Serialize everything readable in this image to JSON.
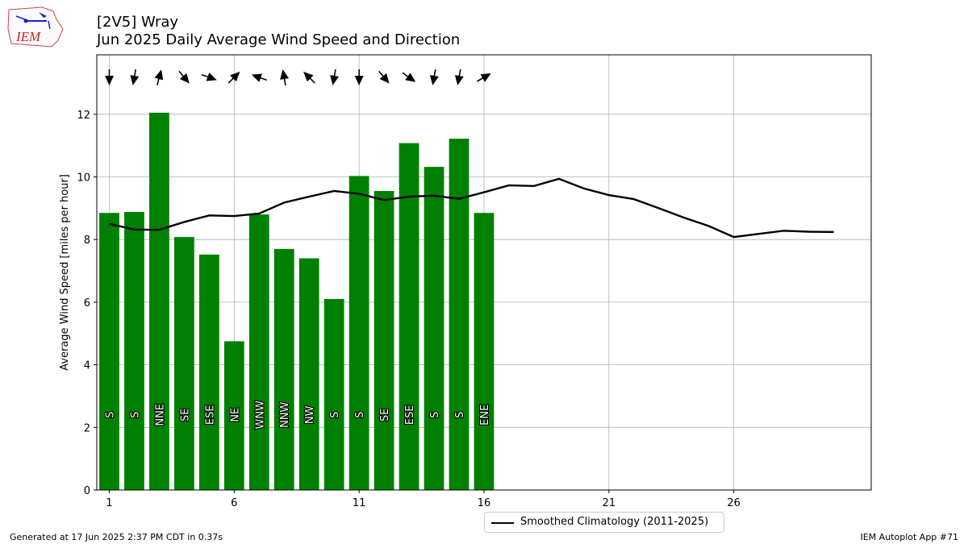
{
  "header": {
    "station": "[2V5] Wray",
    "subtitle": "Jun 2025 Daily Average Wind Speed and Direction"
  },
  "logo": {
    "text": "IEM"
  },
  "chart_data": {
    "type": "bar",
    "ylabel": "Average Wind Speed [miles per hour]",
    "xlabel": "",
    "xlim": [
      0.5,
      31.5
    ],
    "ylim": [
      0,
      13.9
    ],
    "xticks": [
      1,
      6,
      11,
      16,
      21,
      26
    ],
    "yticks": [
      0,
      2,
      4,
      6,
      8,
      10,
      12
    ],
    "grid": true,
    "bar_color": "#008000",
    "days": [
      1,
      2,
      3,
      4,
      5,
      6,
      7,
      8,
      9,
      10,
      11,
      12,
      13,
      14,
      15,
      16
    ],
    "values": [
      8.85,
      8.88,
      12.05,
      8.08,
      7.52,
      4.75,
      8.8,
      7.7,
      7.4,
      6.1,
      10.03,
      9.55,
      11.08,
      10.32,
      11.22,
      8.85
    ],
    "directions": [
      "S",
      "S",
      "NNE",
      "SE",
      "ESE",
      "NE",
      "WNW",
      "NNW",
      "NW",
      "S",
      "S",
      "SE",
      "ESE",
      "S",
      "S",
      "ENE"
    ],
    "arrow_bearings_deg": [
      180,
      190,
      15,
      140,
      110,
      45,
      290,
      350,
      315,
      190,
      180,
      140,
      125,
      190,
      190,
      60
    ],
    "climatology": {
      "name": "Smoothed Climatology (2011-2025)",
      "color": "#000000",
      "x": [
        1,
        2,
        3,
        4,
        5,
        6,
        7,
        8,
        9,
        10,
        11,
        12,
        13,
        14,
        15,
        16,
        17,
        18,
        19,
        20,
        21,
        22,
        23,
        24,
        25,
        26,
        27,
        28,
        29,
        30
      ],
      "y": [
        8.5,
        8.32,
        8.31,
        8.56,
        8.77,
        8.75,
        8.83,
        9.18,
        9.37,
        9.55,
        9.46,
        9.26,
        9.37,
        9.4,
        9.3,
        9.51,
        9.73,
        9.71,
        9.94,
        9.63,
        9.42,
        9.29,
        9.0,
        8.7,
        8.43,
        8.08,
        8.18,
        8.28,
        8.25,
        8.24
      ]
    }
  },
  "footer": {
    "generated": "Generated at 17 Jun 2025 2:37 PM CDT in 0.37s",
    "app": "IEM Autoplot App #71"
  }
}
